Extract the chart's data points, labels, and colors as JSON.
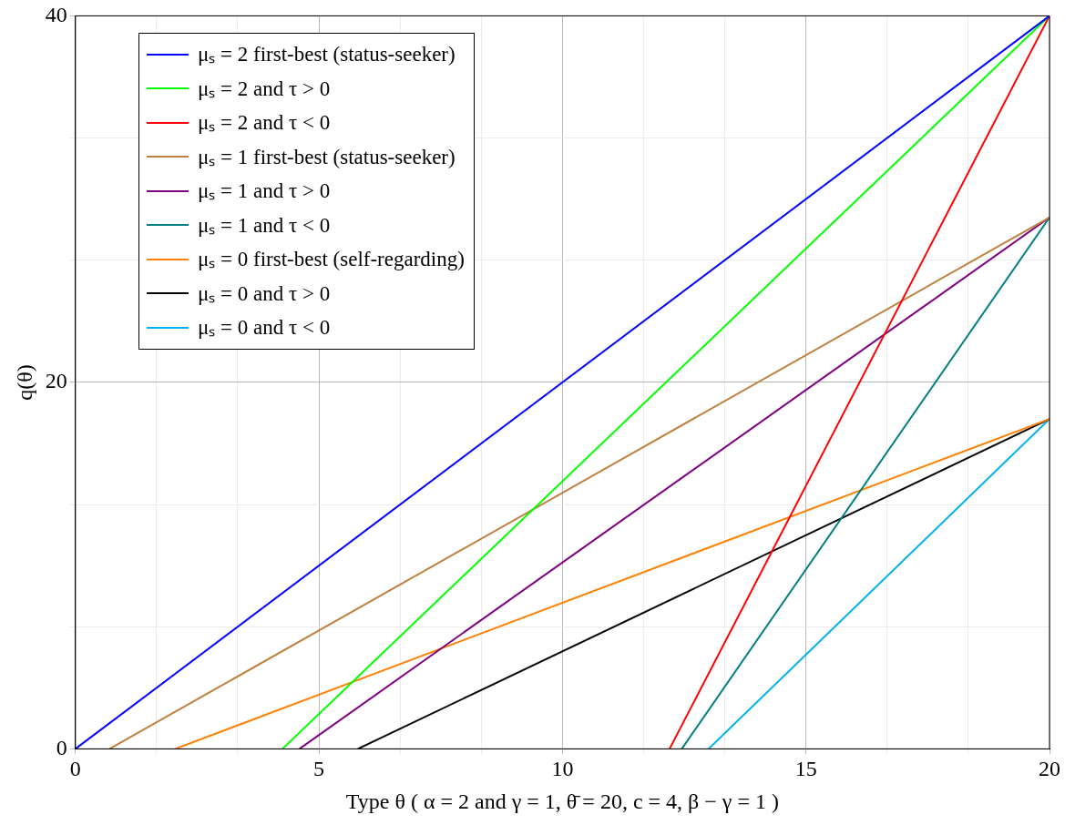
{
  "chart_data": {
    "type": "line",
    "xlabel": "Type θ ( α = 2 and γ = 1, θ̄ = 20, c = 4, β − γ = 1 )",
    "ylabel": "q(θ)",
    "xlim": [
      0,
      20
    ],
    "ylim": [
      0,
      40
    ],
    "xticks": [
      0,
      {
        "value": 1.6667,
        "label": null
      },
      {
        "value": 3.3333,
        "label": null
      },
      5,
      {
        "value": 6.6667,
        "label": null
      },
      {
        "value": 8.3333,
        "label": null
      },
      10,
      {
        "value": 11.6667,
        "label": null
      },
      {
        "value": 13.3333,
        "label": null
      },
      15,
      {
        "value": 16.6667,
        "label": null
      },
      {
        "value": 18.3333,
        "label": null
      },
      20
    ],
    "yticks": [
      0,
      {
        "value": 6.6667,
        "label": null
      },
      {
        "value": 13.3333,
        "label": null
      },
      20,
      {
        "value": 26.6667,
        "label": null
      },
      {
        "value": 33.3333,
        "label": null
      },
      40
    ],
    "grid": true,
    "legend": "top left",
    "marker": "none",
    "line_style": "solid",
    "series": [
      {
        "name": "μₛ = 2 first-best (status-seeker)",
        "color": "#0000ff",
        "x": [
          0,
          20
        ],
        "values": [
          0,
          40
        ]
      },
      {
        "name": "μₛ = 2 and τ > 0",
        "color": "#00ff00",
        "x": [
          4.25,
          20
        ],
        "values": [
          0,
          40
        ]
      },
      {
        "name": "μₛ = 2 and τ < 0",
        "color": "#ff0000",
        "x": [
          12.2,
          20
        ],
        "values": [
          0,
          40
        ]
      },
      {
        "name": "μₛ = 1 first-best (status-seeker)",
        "color": "#bf8040",
        "x": [
          0.7,
          20
        ],
        "values": [
          0,
          29
        ]
      },
      {
        "name": "μₛ = 1 and τ > 0",
        "color": "#800080",
        "x": [
          4.6,
          20
        ],
        "values": [
          0,
          29
        ]
      },
      {
        "name": "μₛ = 1 and τ < 0",
        "color": "#008080",
        "x": [
          12.45,
          20
        ],
        "values": [
          0,
          29
        ]
      },
      {
        "name": "μₛ = 0 first-best (self-regarding)",
        "color": "#ff8000",
        "x": [
          2.05,
          20
        ],
        "values": [
          0,
          18
        ]
      },
      {
        "name": "μₛ = 0 and τ > 0",
        "color": "#000000",
        "x": [
          5.8,
          20
        ],
        "values": [
          0,
          18
        ]
      },
      {
        "name": "μₛ = 0 and τ < 0",
        "color": "#00b0f0",
        "x": [
          13,
          20
        ],
        "values": [
          0,
          18
        ]
      }
    ]
  }
}
